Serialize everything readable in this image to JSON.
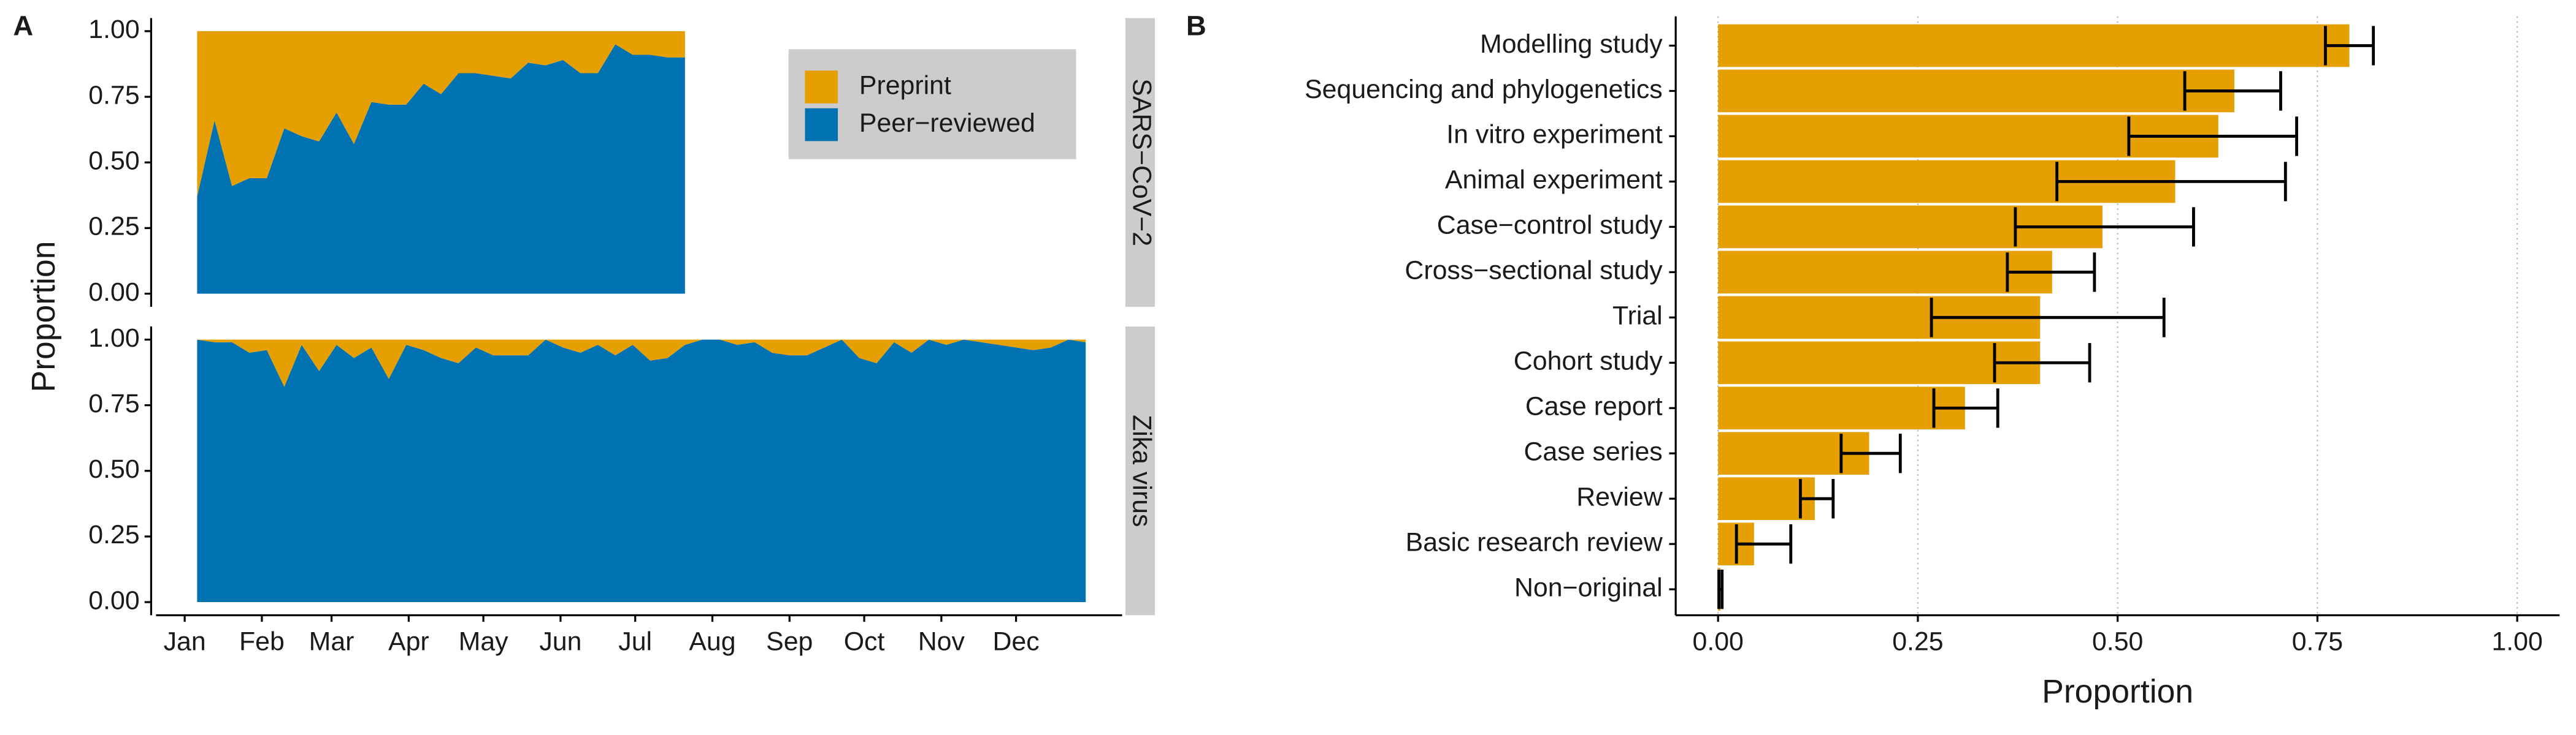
{
  "chart_data": [
    {
      "type": "area",
      "panel_label": "A",
      "ylabel": "Proportion",
      "xlim": [
        -10.5,
        377.6
      ],
      "xticks": [
        {
          "value": 1,
          "label": "Jan"
        },
        {
          "value": 32,
          "label": "Feb"
        },
        {
          "value": 60,
          "label": "Mar"
        },
        {
          "value": 91,
          "label": "Apr"
        },
        {
          "value": 121,
          "label": "May"
        },
        {
          "value": 152,
          "label": "Jun"
        },
        {
          "value": 182,
          "label": "Jul"
        },
        {
          "value": 213,
          "label": "Aug"
        },
        {
          "value": 244,
          "label": "Sep"
        },
        {
          "value": 274,
          "label": "Oct"
        },
        {
          "value": 305,
          "label": "Nov"
        },
        {
          "value": 335,
          "label": "Dec"
        }
      ],
      "ylim": [
        -0.05,
        1.05
      ],
      "yticks": [
        {
          "value": 0,
          "label": "0.00"
        },
        {
          "value": 0.25,
          "label": "0.25"
        },
        {
          "value": 0.5,
          "label": "0.50"
        },
        {
          "value": 0.75,
          "label": "0.75"
        },
        {
          "value": 1,
          "label": "1.00"
        }
      ],
      "facets": [
        {
          "label": "SARS−CoV−2",
          "x": [
            6,
            13,
            20,
            27,
            34,
            41,
            48,
            55,
            62,
            69,
            76,
            83,
            90,
            97,
            104,
            111,
            118,
            125,
            132,
            139,
            146,
            153,
            160,
            167,
            174,
            181,
            188,
            195,
            202
          ],
          "series": [
            {
              "name": "Peer−reviewed",
              "color": "#0072B2",
              "values": [
                0.37,
                0.66,
                0.41,
                0.44,
                0.44,
                0.63,
                0.6,
                0.58,
                0.69,
                0.57,
                0.73,
                0.72,
                0.72,
                0.8,
                0.76,
                0.84,
                0.84,
                0.83,
                0.82,
                0.88,
                0.87,
                0.89,
                0.84,
                0.84,
                0.95,
                0.91,
                0.91,
                0.9,
                0.9
              ]
            },
            {
              "name": "Preprint",
              "color": "#E69F00",
              "values": [
                0.63,
                0.34,
                0.59,
                0.56,
                0.56,
                0.37,
                0.4,
                0.42,
                0.31,
                0.43,
                0.27,
                0.28,
                0.28,
                0.2,
                0.24,
                0.16,
                0.16,
                0.17,
                0.18,
                0.12,
                0.13,
                0.11,
                0.16,
                0.16,
                0.05,
                0.09,
                0.09,
                0.1,
                0.1
              ]
            }
          ]
        },
        {
          "label": "Zika virus",
          "x": [
            6,
            13,
            20,
            27,
            34,
            41,
            48,
            55,
            62,
            69,
            76,
            83,
            90,
            97,
            104,
            111,
            118,
            125,
            132,
            139,
            146,
            153,
            160,
            167,
            174,
            181,
            188,
            195,
            202,
            209,
            216,
            223,
            230,
            237,
            244,
            251,
            258,
            265,
            272,
            279,
            286,
            293,
            300,
            307,
            314,
            321,
            328,
            335,
            342,
            349,
            356,
            363
          ],
          "series": [
            {
              "name": "Peer−reviewed",
              "color": "#0072B2",
              "values": [
                1.0,
                0.99,
                0.99,
                0.95,
                0.96,
                0.82,
                0.98,
                0.88,
                0.98,
                0.93,
                0.97,
                0.85,
                0.98,
                0.96,
                0.93,
                0.91,
                0.97,
                0.94,
                0.94,
                0.94,
                1.0,
                0.97,
                0.95,
                0.98,
                0.94,
                0.98,
                0.92,
                0.93,
                0.98,
                1.0,
                1.0,
                0.98,
                0.99,
                0.95,
                0.94,
                0.94,
                0.97,
                1.0,
                0.93,
                0.91,
                0.99,
                0.95,
                1.0,
                0.98,
                1.0,
                0.99,
                0.98,
                0.97,
                0.96,
                0.97,
                1.0,
                0.99
              ]
            },
            {
              "name": "Preprint",
              "color": "#E69F00",
              "values": [
                0,
                0.01,
                0.01,
                0.05,
                0.04,
                0.18,
                0.02,
                0.12,
                0.02,
                0.07,
                0.03,
                0.15,
                0.02,
                0.04,
                0.07,
                0.09,
                0.03,
                0.06,
                0.06,
                0.06,
                0,
                0.03,
                0.05,
                0.02,
                0.06,
                0.02,
                0.08,
                0.07,
                0.02,
                0,
                0,
                0.02,
                0.01,
                0.05,
                0.06,
                0.06,
                0.03,
                0,
                0.07,
                0.09,
                0.01,
                0.05,
                0,
                0.02,
                0,
                0.01,
                0.02,
                0.03,
                0.04,
                0.03,
                0,
                0.01
              ]
            }
          ]
        }
      ]
    },
    {
      "type": "hbar",
      "panel_label": "B",
      "xlabel": "Proportion",
      "color": "#E69F00",
      "grid": true,
      "categories": [
        "Modelling study",
        "Sequencing and phylogenetics",
        "In vitro experiment",
        "Animal experiment",
        "Case−control study",
        "Cross−sectional study",
        "Trial",
        "Cohort study",
        "Case report",
        "Case series",
        "Review",
        "Basic research review",
        "Non−original"
      ],
      "values": [
        0.79,
        0.646,
        0.626,
        0.572,
        0.481,
        0.418,
        0.403,
        0.403,
        0.309,
        0.189,
        0.121,
        0.045,
        0.003
      ],
      "ci_low": [
        0.76,
        0.584,
        0.514,
        0.424,
        0.372,
        0.362,
        0.267,
        0.346,
        0.27,
        0.154,
        0.103,
        0.023,
        0.001
      ],
      "ci_high": [
        0.82,
        0.704,
        0.724,
        0.71,
        0.595,
        0.471,
        0.558,
        0.465,
        0.35,
        0.228,
        0.144,
        0.091,
        0.005
      ],
      "xlim": [
        -0.053,
        1.053
      ],
      "xticks": [
        {
          "value": 0,
          "label": "0.00"
        },
        {
          "value": 0.25,
          "label": "0.25"
        },
        {
          "value": 0.5,
          "label": "0.50"
        },
        {
          "value": 0.75,
          "label": "0.75"
        },
        {
          "value": 1,
          "label": "1.00"
        }
      ]
    }
  ]
}
